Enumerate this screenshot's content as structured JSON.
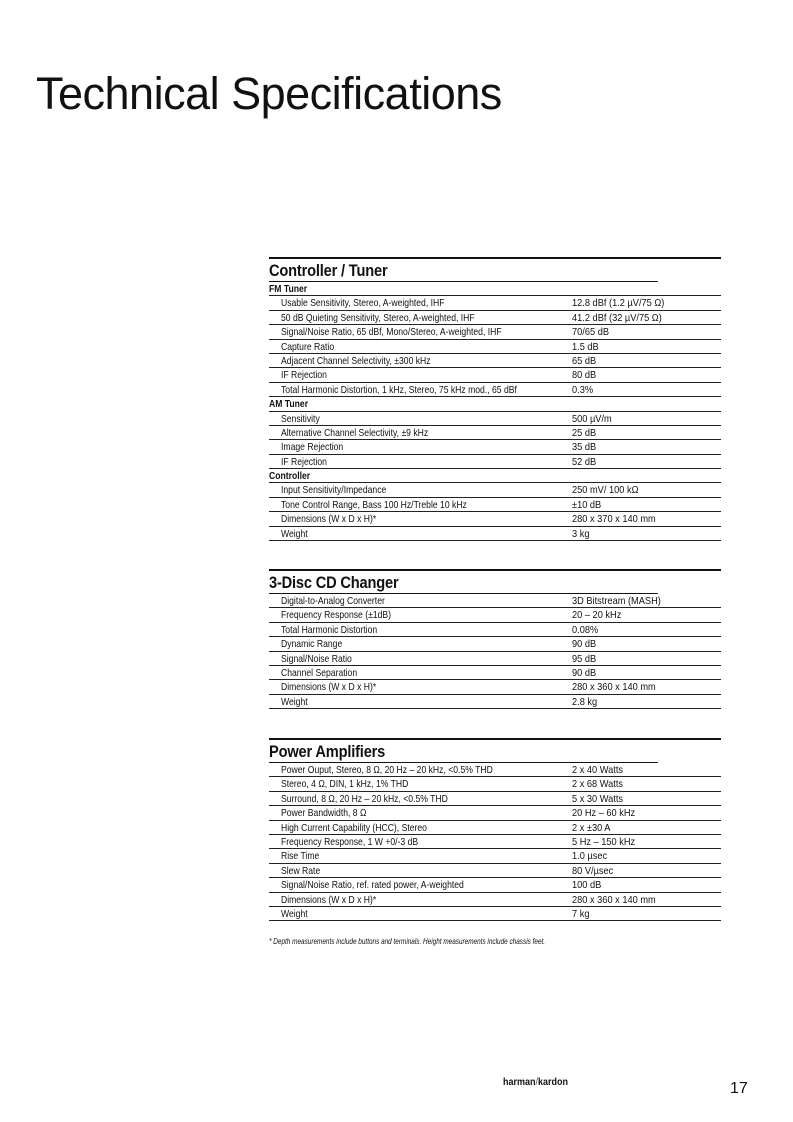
{
  "title": "Technical Specifications",
  "sections": [
    {
      "title": "Controller / Tuner",
      "rows": [
        {
          "sub": true,
          "label": "FM Tuner",
          "value": ""
        },
        {
          "label": "Usable Sensitivity, Stereo, A-weighted, IHF",
          "value": "12.8 dBf (1.2 µV/75 Ω)"
        },
        {
          "label": "50 dB Quieting Sensitivity, Stereo, A-weighted, IHF",
          "value": "41.2 dBf (32 µV/75 Ω)"
        },
        {
          "label": "Signal/Noise Ratio, 65 dBf, Mono/Stereo, A-weighted, IHF",
          "value": "70/65 dB"
        },
        {
          "label": "Capture Ratio",
          "value": "1.5 dB"
        },
        {
          "label": "Adjacent Channel Selectivity, ±300 kHz",
          "value": "65 dB"
        },
        {
          "label": "IF Rejection",
          "value": "80 dB"
        },
        {
          "label": "Total Harmonic Distortion, 1 kHz, Stereo, 75 kHz mod., 65 dBf",
          "value": "0.3%"
        },
        {
          "sub": true,
          "label": "AM Tuner",
          "value": ""
        },
        {
          "label": "Sensitivity",
          "value": "500 µV/m"
        },
        {
          "label": "Alternative Channel Selectivity, ±9 kHz",
          "value": "25 dB"
        },
        {
          "label": "Image Rejection",
          "value": "35 dB"
        },
        {
          "label": "IF Rejection",
          "value": "52 dB"
        },
        {
          "sub": true,
          "label": "Controller",
          "value": ""
        },
        {
          "label": "Input Sensitivity/Impedance",
          "value": "250 mV/ 100 kΩ"
        },
        {
          "label": "Tone Control Range, Bass 100 Hz/Treble 10 kHz",
          "value": "±10 dB"
        },
        {
          "label": "Dimensions (W x D x H)*",
          "value": "280 x 370 x 140 mm"
        },
        {
          "label": "Weight",
          "value": "3 kg"
        }
      ]
    },
    {
      "title": "3-Disc CD Changer",
      "rows": [
        {
          "label": "Digital-to-Analog Converter",
          "value": "3D Bitstream (MASH)"
        },
        {
          "label": "Frequency Response (±1dB)",
          "value": "20 – 20 kHz"
        },
        {
          "label": "Total Harmonic Distortion",
          "value": "0.08%"
        },
        {
          "label": "Dynamic Range",
          "value": "90 dB"
        },
        {
          "label": "Signal/Noise Ratio",
          "value": "95 dB"
        },
        {
          "label": "Channel Separation",
          "value": "90 dB"
        },
        {
          "label": "Dimensions (W x D x H)*",
          "value": "280 x 360 x 140 mm"
        },
        {
          "label": "Weight",
          "value": "2.8 kg"
        }
      ]
    },
    {
      "title": "Power Amplifiers",
      "rows": [
        {
          "label": "Power Ouput, Stereo, 8 Ω, 20 Hz – 20 kHz, <0.5% THD",
          "value": "2 x 40 Watts"
        },
        {
          "label": "Stereo, 4 Ω, DIN, 1 kHz, 1% THD",
          "value": "2 x 68 Watts"
        },
        {
          "label": "Surround, 8 Ω, 20 Hz – 20 kHz, <0.5% THD",
          "value": "5 x 30 Watts"
        },
        {
          "label": "Power Bandwidth, 8 Ω",
          "value": "20 Hz – 60 kHz"
        },
        {
          "label": "High Current Capability (HCC), Stereo",
          "value": "2 x ±30 A"
        },
        {
          "label": "Frequency Response, 1 W +0/-3 dB",
          "value": "5 Hz – 150 kHz"
        },
        {
          "label": "Rise Time",
          "value": "1.0 µsec"
        },
        {
          "label": "Slew Rate",
          "value": "80 V/µsec"
        },
        {
          "label": "Signal/Noise Ratio, ref. rated power, A-weighted",
          "value": "100 dB"
        },
        {
          "label": "Dimensions (W x D x H)*",
          "value": "280 x 360 x 140 mm"
        },
        {
          "label": "Weight",
          "value": "7 kg"
        }
      ]
    }
  ],
  "footnote": "* Depth measurements include buttons and terminals. Height measurements include chassis feet.",
  "footer": {
    "brand_left": "harman",
    "brand_sep": "/",
    "brand_right": "kardon",
    "page_number": "17"
  }
}
